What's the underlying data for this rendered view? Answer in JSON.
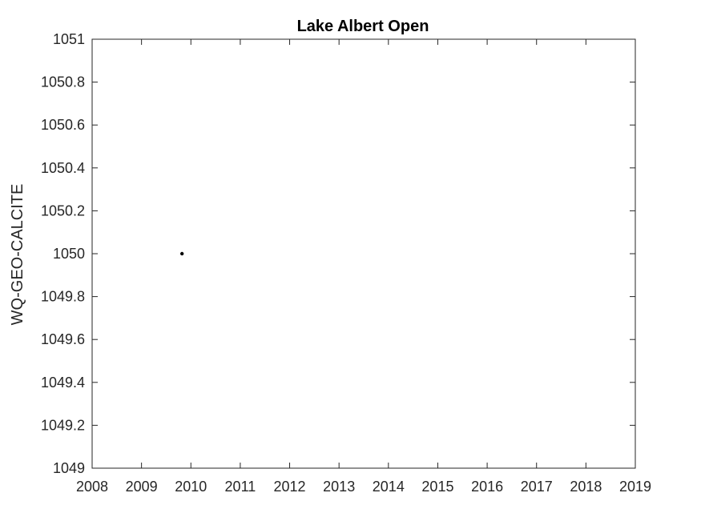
{
  "chart_data": {
    "type": "scatter",
    "title": "Lake Albert Open",
    "xlabel": "",
    "ylabel": "WQ-GEO-CALCITE",
    "xlim": [
      2008,
      2019
    ],
    "ylim": [
      1049,
      1051
    ],
    "xticks": [
      2008,
      2009,
      2010,
      2011,
      2012,
      2013,
      2014,
      2015,
      2016,
      2017,
      2018,
      2019
    ],
    "yticks": [
      1049,
      1049.2,
      1049.4,
      1049.6,
      1049.8,
      1050,
      1050.2,
      1050.4,
      1050.6,
      1050.8,
      1051
    ],
    "xtick_labels": [
      "2008",
      "2009",
      "2010",
      "2011",
      "2012",
      "2013",
      "2014",
      "2015",
      "2016",
      "2017",
      "2018",
      "2019"
    ],
    "ytick_labels": [
      "1049",
      "1049.2",
      "1049.4",
      "1049.6",
      "1049.8",
      "1050",
      "1050.2",
      "1050.4",
      "1050.6",
      "1050.8",
      "1051"
    ],
    "grid": false,
    "series": [
      {
        "points": [
          {
            "x": 2009.82,
            "y": 1050
          }
        ],
        "color": "#000000"
      }
    ]
  }
}
